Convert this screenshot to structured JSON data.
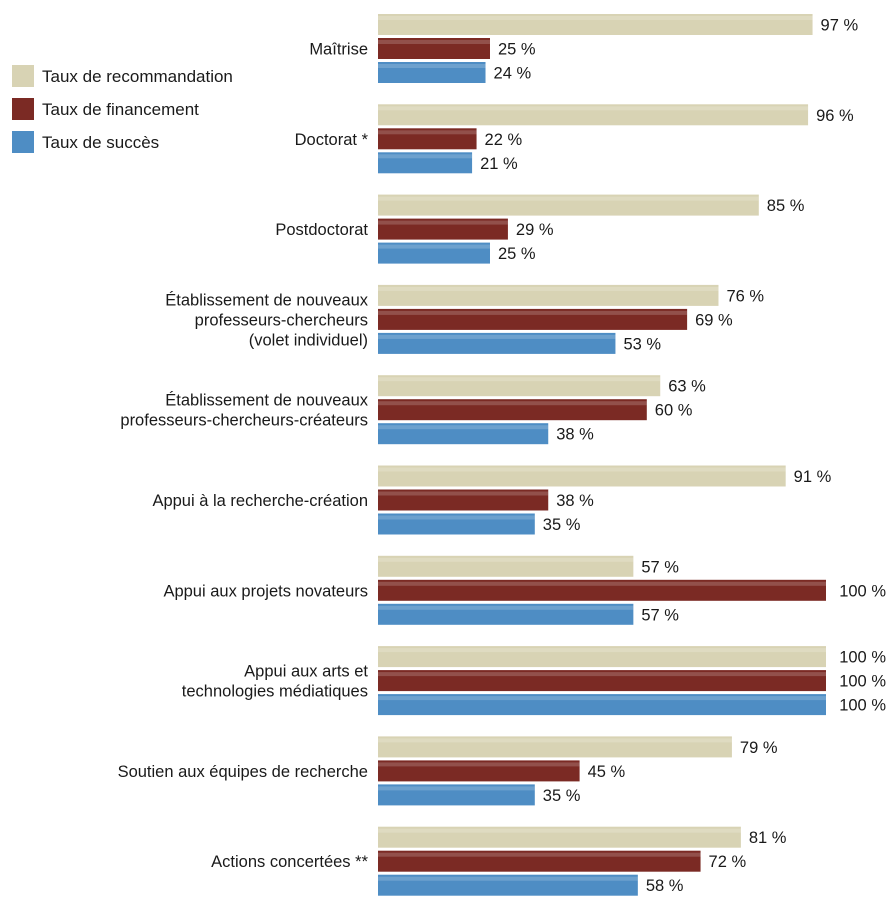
{
  "chart_data": {
    "type": "bar",
    "orientation": "horizontal",
    "grouped": true,
    "value_suffix": " %",
    "xlim": [
      0,
      100
    ],
    "grid": false,
    "legend_position": "top-left",
    "categories": [
      [
        "Maîtrise"
      ],
      [
        "Doctorat *"
      ],
      [
        "Postdoctorat"
      ],
      [
        "Établissement de nouveaux",
        "professeurs-chercheurs",
        "(volet individuel)"
      ],
      [
        "Établissement de nouveaux",
        "professeurs-chercheurs-créateurs"
      ],
      [
        "Appui à la recherche-création"
      ],
      [
        "Appui aux projets novateurs"
      ],
      [
        "Appui aux arts et",
        "technologies médiatiques"
      ],
      [
        "Soutien aux équipes de recherche"
      ],
      [
        "Actions concertées **"
      ]
    ],
    "series": [
      {
        "name": "Taux de recommandation",
        "color": "#d8d3b4",
        "values": [
          97,
          96,
          85,
          76,
          63,
          91,
          57,
          100,
          79,
          81
        ]
      },
      {
        "name": "Taux de financement",
        "color": "#7b2a24",
        "values": [
          25,
          22,
          29,
          69,
          60,
          38,
          100,
          100,
          45,
          72
        ]
      },
      {
        "name": "Taux de succès",
        "color": "#4e8dc4",
        "values": [
          24,
          21,
          25,
          53,
          38,
          35,
          57,
          100,
          35,
          58
        ]
      }
    ]
  }
}
